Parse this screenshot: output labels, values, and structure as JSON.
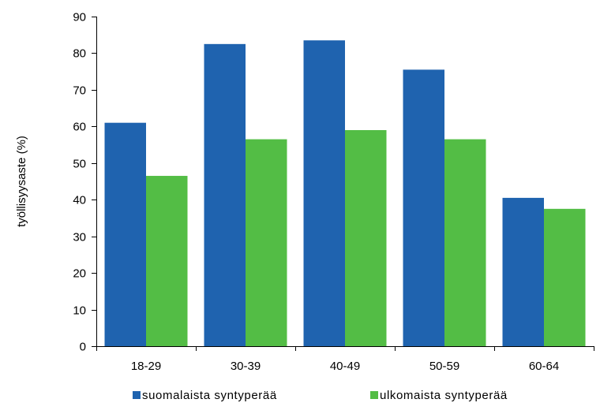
{
  "chart_data": {
    "type": "bar",
    "title": "",
    "xlabel": "",
    "ylabel": "työllisyysaste (%)",
    "categories": [
      "18-29",
      "30-39",
      "40-49",
      "50-59",
      "60-64"
    ],
    "ylim": [
      0,
      90
    ],
    "yticks": [
      0,
      10,
      20,
      30,
      40,
      50,
      60,
      70,
      80,
      90
    ],
    "grid": false,
    "legend_position": "bottom",
    "series": [
      {
        "name": "suomalaista syntyperää",
        "color": "#1F63AF",
        "values": [
          61,
          82.5,
          83.5,
          75.5,
          40.5
        ]
      },
      {
        "name": "ulkomaista syntyperää",
        "color": "#53BD45",
        "values": [
          46.5,
          56.5,
          59,
          56.5,
          37.5
        ]
      }
    ]
  }
}
